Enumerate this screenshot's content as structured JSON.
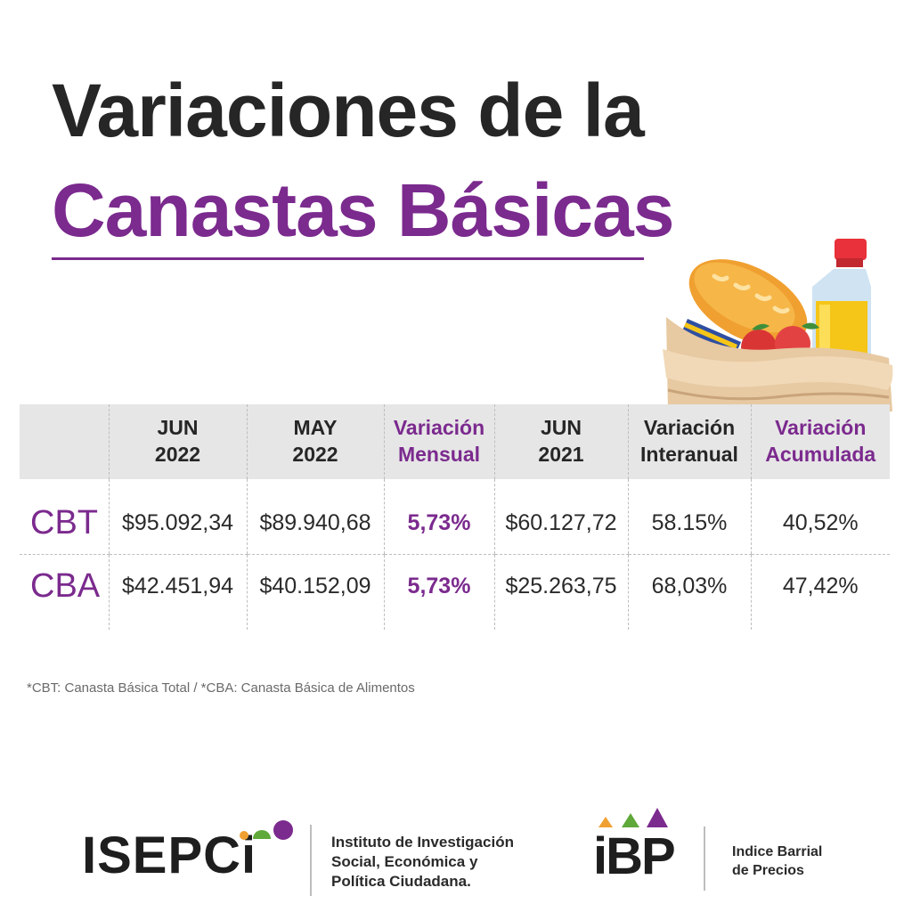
{
  "title": {
    "line1": "Variaciones de la",
    "line2": "Canastas Básicas"
  },
  "table": {
    "headers": [
      {
        "line1": "",
        "line2": ""
      },
      {
        "line1": "JUN",
        "line2": "2022"
      },
      {
        "line1": "MAY",
        "line2": "2022"
      },
      {
        "line1": "Variación",
        "line2": "Mensual"
      },
      {
        "line1": "JUN",
        "line2": "2021"
      },
      {
        "line1": "Variación",
        "line2": "Interanual"
      },
      {
        "line1": "Variación",
        "line2": "Acumulada"
      }
    ],
    "rows": [
      {
        "label": "CBT",
        "cells": [
          "$95.092,34",
          "$89.940,68",
          "5,73%",
          "$60.127,72",
          "58.15%",
          "40,52%"
        ]
      },
      {
        "label": "CBA",
        "cells": [
          "$42.451,94",
          "$40.152,09",
          "5,73%",
          "$25.263,75",
          "68,03%",
          "47,42%"
        ]
      }
    ]
  },
  "footnote": "*CBT: Canasta Básica Total / *CBA: Canasta Básica de Alimentos",
  "footer": {
    "isepci": {
      "logo_text": "ISEPCi",
      "description": [
        "Instituto de Investigación",
        "Social, Económica y",
        "Política Ciudadana."
      ]
    },
    "ibp": {
      "logo_text": "iBP",
      "description": [
        "Indice Barrial",
        "de Precios"
      ]
    }
  },
  "colors": {
    "accent": "#7b2a8e",
    "dark_text": "#262626",
    "header_bg": "#e6e6e6",
    "logo_green": "#5fa83a",
    "logo_orange": "#f0a030"
  },
  "icons": [
    "basket-illustration",
    "bread-icon",
    "bottle-icon",
    "apple-icon",
    "can-icon"
  ]
}
